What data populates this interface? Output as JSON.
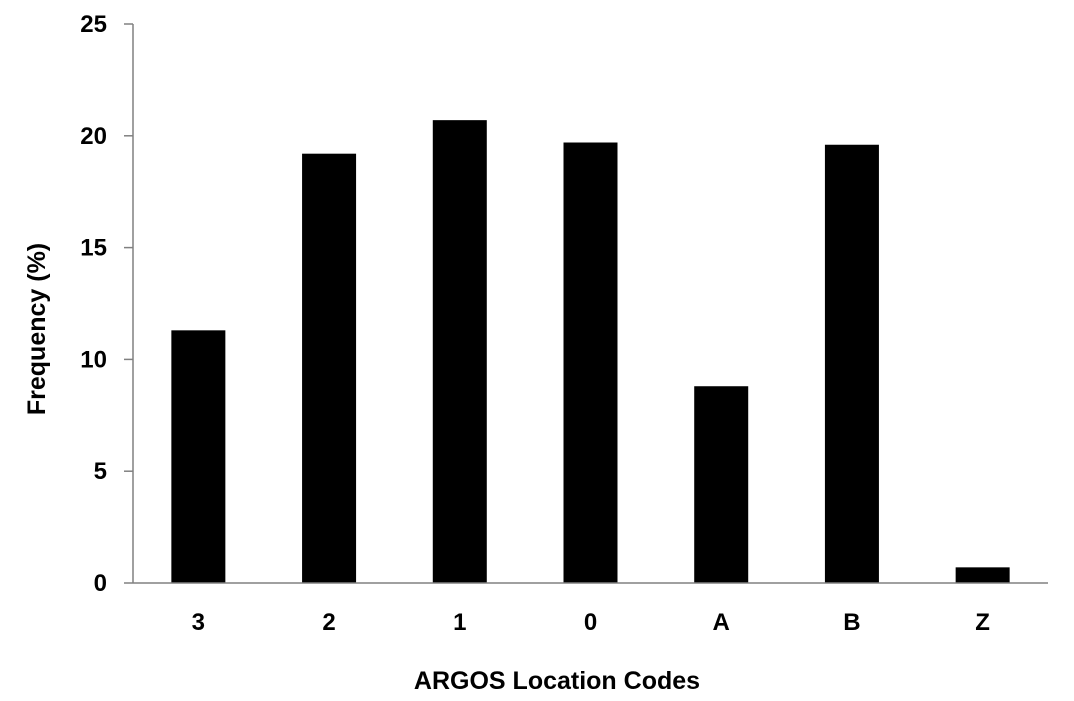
{
  "chart_data": {
    "type": "bar",
    "title": "",
    "xlabel": "ARGOS Location Codes",
    "ylabel": "Frequency (%)",
    "categories": [
      "3",
      "2",
      "1",
      "0",
      "A",
      "B",
      "Z"
    ],
    "values": [
      11.3,
      19.2,
      20.7,
      19.7,
      8.8,
      19.6,
      0.7
    ],
    "ylim": [
      0,
      25
    ],
    "yticks": [
      0,
      5,
      10,
      15,
      20,
      25
    ],
    "ytick_labels": [
      "0",
      "5",
      "10",
      "15",
      "20",
      "25"
    ],
    "grid": false,
    "legend": "none",
    "bar_color": "#000000",
    "axis_color": "#808080"
  }
}
